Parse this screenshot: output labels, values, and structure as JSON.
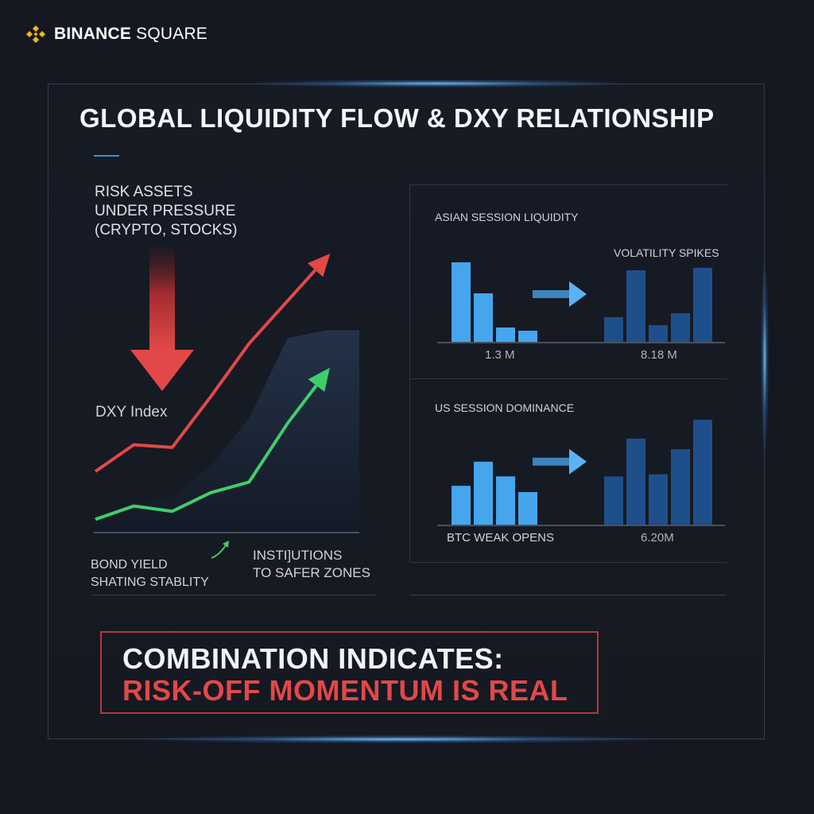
{
  "brand": {
    "name_bold": "BINANCE",
    "name_regular": "SQUARE"
  },
  "colors": {
    "background": "#151821",
    "card_border": "#343a48",
    "accent_red": "#e24848",
    "accent_green": "#3fce6a",
    "bar_light": "#45a6ee",
    "bar_dark": "#1f4f8a",
    "brand_gold": "#f0b90b"
  },
  "icons": {
    "logo": "binance-diamond-icon",
    "down_arrow": "red-down-arrow-icon",
    "flow_arrow": "right-arrow-icon",
    "small_arrow": "green-curved-arrow-icon"
  },
  "title": "GLOBAL LIQUIDITY FLOW & DXY RELATIONSHIP",
  "left": {
    "risk_label": "RISK ASSETS\nUNDER PRESSURE\n(CRYPTO, STOCKS)",
    "dxy_label": "DXY Index",
    "bond_label": "BOND YIELD\nSHATING STABLITY",
    "inst_label": "INSTI]UTIONS\nTO SAFER ZONES"
  },
  "right": {
    "asian_label": "ASIAN SESSION LIQUIDITY",
    "volatility_label": "VOLATILITY SPIKES",
    "asian_value_left": "1.3 M",
    "asian_value_right": "8.18 M",
    "us_label": "US SESSION DOMINANCE",
    "btc_label": "BTC WEAK OPENS",
    "us_value_right": "6.20M"
  },
  "callout": {
    "line1": "COMBINATION INDICATES:",
    "line2": "RISK-OFF MOMENTUM IS REAL"
  },
  "chart_data": [
    {
      "type": "line",
      "title": "",
      "xlabel": "",
      "ylabel": "",
      "x": [
        0,
        1,
        2,
        3,
        4,
        5,
        6
      ],
      "ylim": [
        0,
        100
      ],
      "series": [
        {
          "name": "",
          "color": "#e24848",
          "values": [
            20,
            30,
            29,
            48,
            68,
            84,
            100
          ]
        },
        {
          "name": "",
          "color": "#3fce6a",
          "values": [
            2,
            7,
            5,
            12,
            16,
            38,
            57
          ]
        }
      ],
      "area": {
        "values": [
          2,
          8,
          10,
          22,
          40,
          70,
          73
        ]
      },
      "grid": false
    },
    {
      "type": "bar",
      "title": "",
      "ylim": [
        0,
        100
      ],
      "groups": [
        {
          "color": "#45a6ee",
          "values": [
            100,
            61,
            18,
            14
          ]
        },
        {
          "color": "#1f4f8a",
          "values": [
            31,
            90,
            21,
            36,
            93
          ]
        }
      ]
    },
    {
      "type": "bar",
      "title": "",
      "ylim": [
        0,
        100
      ],
      "groups": [
        {
          "color": "#45a6ee",
          "values": [
            37,
            60,
            46,
            31
          ]
        },
        {
          "color": "#1f4f8a",
          "values": [
            46,
            82,
            48,
            72,
            100
          ]
        }
      ]
    }
  ]
}
